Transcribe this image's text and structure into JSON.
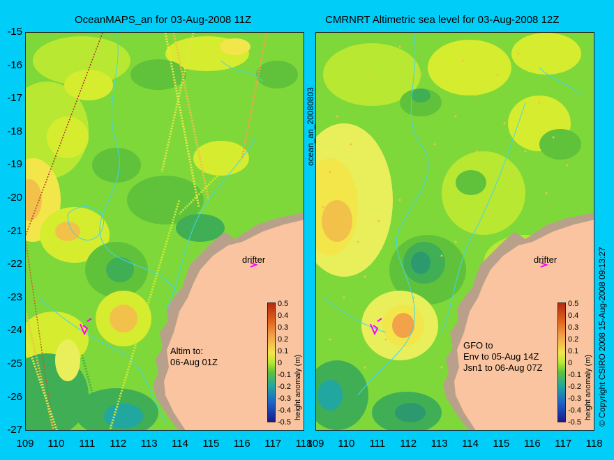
{
  "left": {
    "title": "OceanMAPS_an for 03-Aug-2008 11Z",
    "annotation": "Altim to:\n06-Aug 01Z",
    "drifter_label": "drifter"
  },
  "right": {
    "title": "CMRNRT Altimetric sea level  for 03-Aug-2008 12Z",
    "annotation": "GFO to\nEnv to 05-Aug 14Z\nJsn1 to 06-Aug 07Z",
    "drifter_label": "drifter"
  },
  "axes": {
    "lat_ticks": [
      "-15",
      "-16",
      "-17",
      "-18",
      "-19",
      "-20",
      "-21",
      "-22",
      "-23",
      "-24",
      "-25",
      "-26",
      "-27"
    ],
    "lon_ticks": [
      "109",
      "110",
      "111",
      "112",
      "113",
      "114",
      "115",
      "116",
      "117",
      "118"
    ]
  },
  "colorbar": {
    "title": "height anomaly (m)",
    "ticks": [
      "0.5",
      "0.4",
      "0.3",
      "0.2",
      "0.1",
      "0",
      "-0.1",
      "-0.2",
      "-0.3",
      "-0.4",
      "-0.5"
    ]
  },
  "side_labels": {
    "middle": "ocean_an_20080803",
    "right": "© Copyright CSIRO 2008   15-Aug-2008 09:13:27"
  },
  "colors": {
    "background": "#00cdf8",
    "land": "#f9c49f",
    "sea_base": "#7fd83a",
    "drifter": "#ff00ff"
  }
}
